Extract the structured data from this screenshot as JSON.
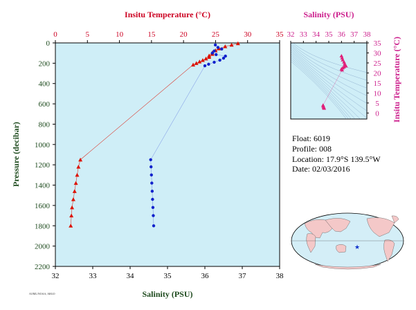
{
  "chart_data": [
    {
      "type": "scatter",
      "top_axis": {
        "label": "Insitu Temperature (°C)",
        "range": [
          0,
          35
        ],
        "ticks": [
          0,
          5,
          10,
          15,
          20,
          25,
          30,
          35
        ]
      },
      "bottom_axis": {
        "label": "Salinity (PSU)",
        "range": [
          32,
          38
        ],
        "ticks": [
          32,
          33,
          34,
          35,
          36,
          37,
          38
        ]
      },
      "left_axis": {
        "label": "Pressure (decibar)",
        "range": [
          0,
          2200
        ],
        "inverted": true,
        "ticks": [
          0,
          200,
          400,
          600,
          800,
          1000,
          1200,
          1400,
          1600,
          1800,
          2000,
          2200
        ]
      },
      "series": [
        {
          "color": "#dd1100",
          "marker": "triangle",
          "axis": "temperature",
          "points": [
            {
              "x": 28.5,
              "y": 5
            },
            {
              "x": 27.5,
              "y": 20
            },
            {
              "x": 26.5,
              "y": 35
            },
            {
              "x": 25.5,
              "y": 55
            },
            {
              "x": 25.0,
              "y": 75
            },
            {
              "x": 24.5,
              "y": 95
            },
            {
              "x": 24.5,
              "y": 110
            },
            {
              "x": 24.0,
              "y": 125
            },
            {
              "x": 24.0,
              "y": 140
            },
            {
              "x": 23.5,
              "y": 155
            },
            {
              "x": 23.0,
              "y": 170
            },
            {
              "x": 22.5,
              "y": 185
            },
            {
              "x": 22.0,
              "y": 200
            },
            {
              "x": 21.5,
              "y": 215
            },
            {
              "x": 3.9,
              "y": 1150
            },
            {
              "x": 3.6,
              "y": 1220
            },
            {
              "x": 3.4,
              "y": 1300
            },
            {
              "x": 3.2,
              "y": 1380
            },
            {
              "x": 3.0,
              "y": 1460
            },
            {
              "x": 2.8,
              "y": 1540
            },
            {
              "x": 2.6,
              "y": 1620
            },
            {
              "x": 2.5,
              "y": 1700
            },
            {
              "x": 2.4,
              "y": 1800
            }
          ]
        },
        {
          "color": "#1122cc",
          "marker": "circle",
          "axis": "salinity",
          "points": [
            {
              "x": 36.28,
              "y": 20
            },
            {
              "x": 36.35,
              "y": 45
            },
            {
              "x": 36.45,
              "y": 60
            },
            {
              "x": 36.25,
              "y": 80
            },
            {
              "x": 36.2,
              "y": 100
            },
            {
              "x": 36.3,
              "y": 115
            },
            {
              "x": 36.55,
              "y": 130
            },
            {
              "x": 36.5,
              "y": 150
            },
            {
              "x": 36.4,
              "y": 170
            },
            {
              "x": 36.25,
              "y": 190
            },
            {
              "x": 36.1,
              "y": 210
            },
            {
              "x": 36.0,
              "y": 225
            },
            {
              "x": 34.55,
              "y": 1150
            },
            {
              "x": 34.56,
              "y": 1220
            },
            {
              "x": 34.57,
              "y": 1300
            },
            {
              "x": 34.58,
              "y": 1380
            },
            {
              "x": 34.59,
              "y": 1460
            },
            {
              "x": 34.6,
              "y": 1540
            },
            {
              "x": 34.61,
              "y": 1620
            },
            {
              "x": 34.62,
              "y": 1700
            },
            {
              "x": 34.63,
              "y": 1800
            }
          ]
        }
      ]
    },
    {
      "type": "scatter",
      "top_axis": {
        "label": "Salinity (PSU)",
        "range": [
          32,
          38
        ],
        "ticks": [
          32,
          33,
          34,
          35,
          36,
          37,
          38
        ]
      },
      "right_axis": {
        "label": "Insitu Temperature (°C)",
        "range": [
          -3,
          35
        ],
        "ticks": [
          0,
          5,
          10,
          15,
          20,
          25,
          30,
          35
        ]
      },
      "series": [
        {
          "color": "#e0207a",
          "marker": "triangle",
          "points": [
            {
              "x": 36.0,
              "y": 28.5
            },
            {
              "x": 36.05,
              "y": 27.5
            },
            {
              "x": 36.1,
              "y": 26.5
            },
            {
              "x": 36.2,
              "y": 25.5
            },
            {
              "x": 36.25,
              "y": 24.5
            },
            {
              "x": 36.3,
              "y": 24.0
            },
            {
              "x": 36.35,
              "y": 23.5
            },
            {
              "x": 36.2,
              "y": 23.0
            },
            {
              "x": 36.1,
              "y": 22.5
            },
            {
              "x": 36.0,
              "y": 22.0
            },
            {
              "x": 36.05,
              "y": 21.5
            },
            {
              "x": 34.55,
              "y": 3.9
            },
            {
              "x": 34.57,
              "y": 3.4
            },
            {
              "x": 34.6,
              "y": 2.9
            },
            {
              "x": 34.62,
              "y": 2.6
            },
            {
              "x": 34.63,
              "y": 2.4
            }
          ]
        }
      ]
    }
  ],
  "info": {
    "float": "Float:  6019",
    "profile": "Profile:  008",
    "location": "Location:  17.9°S  139.5°W",
    "date": "Date:  02/03/2016"
  },
  "footnote": "AOML/NOAA, ARGO",
  "map": {
    "ocean_color": "#d4eef7",
    "land_color": "#f4c8c8",
    "marker_color": "#1133cc"
  },
  "colors": {
    "plot_bg": "#cfeef7",
    "temp": "#dd1100",
    "sal": "#1122cc",
    "ts": "#e0207a"
  }
}
